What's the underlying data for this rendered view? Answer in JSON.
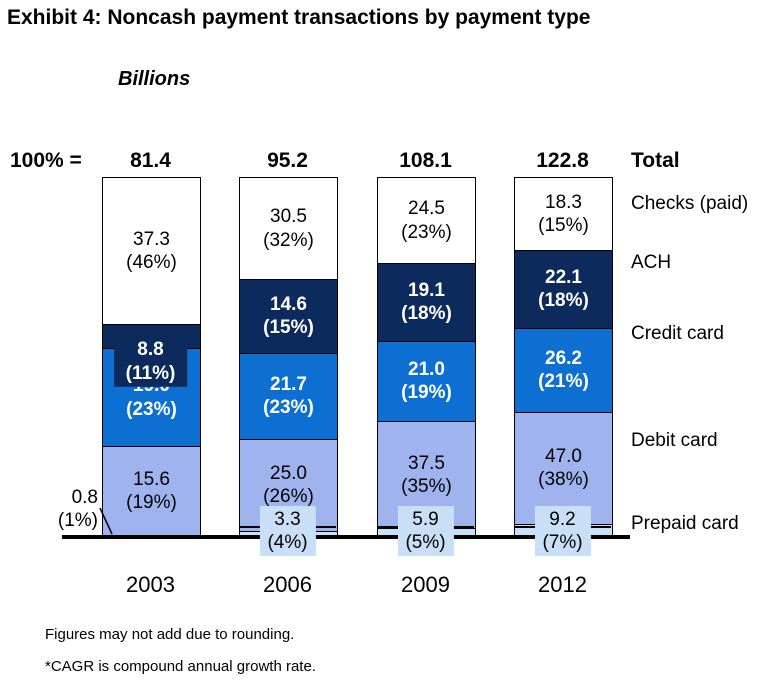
{
  "title": "Exhibit 4: Noncash payment transactions by payment type",
  "footnotes": [
    "Figures may not add due to rounding.",
    "*CAGR is compound annual growth rate."
  ],
  "chart_data": {
    "type": "bar",
    "subtype": "100-percent-stacked-column",
    "title": "Noncash payment transactions by payment type",
    "unit_label": "Billions",
    "total_prefix": "100% =",
    "total_label": "Total",
    "categories": [
      "2003",
      "2006",
      "2009",
      "2012"
    ],
    "totals": [
      81.4,
      95.2,
      108.1,
      122.8
    ],
    "series": [
      {
        "name": "Checks (paid)",
        "color": "#FFFFFF",
        "text_color": "#000000",
        "bold": false,
        "values": [
          37.3,
          30.5,
          24.5,
          18.3
        ],
        "pct": [
          46,
          32,
          23,
          15
        ]
      },
      {
        "name": "ACH",
        "color": "#0D2A5C",
        "text_color": "#FFFFFF",
        "bold": true,
        "values": [
          8.8,
          14.6,
          19.1,
          22.1
        ],
        "pct": [
          11,
          15,
          18,
          18
        ]
      },
      {
        "name": "Credit card",
        "color": "#0E6FD2",
        "text_color": "#FFFFFF",
        "bold": true,
        "values": [
          19.0,
          21.7,
          21.0,
          26.2
        ],
        "pct": [
          23,
          23,
          19,
          21
        ]
      },
      {
        "name": "Debit card",
        "color": "#9FB4EF",
        "text_color": "#000000",
        "bold": false,
        "values": [
          15.6,
          25.0,
          37.5,
          47.0
        ],
        "pct": [
          19,
          26,
          35,
          38
        ]
      },
      {
        "name": "Prepaid card",
        "color": "#C9DFF7",
        "text_color": "#000000",
        "bold": false,
        "values": [
          0.8,
          3.3,
          5.9,
          9.2
        ],
        "pct": [
          1,
          4,
          5,
          7
        ]
      }
    ],
    "legend_position": "right",
    "grid": false,
    "ylim": [
      0,
      100
    ]
  }
}
